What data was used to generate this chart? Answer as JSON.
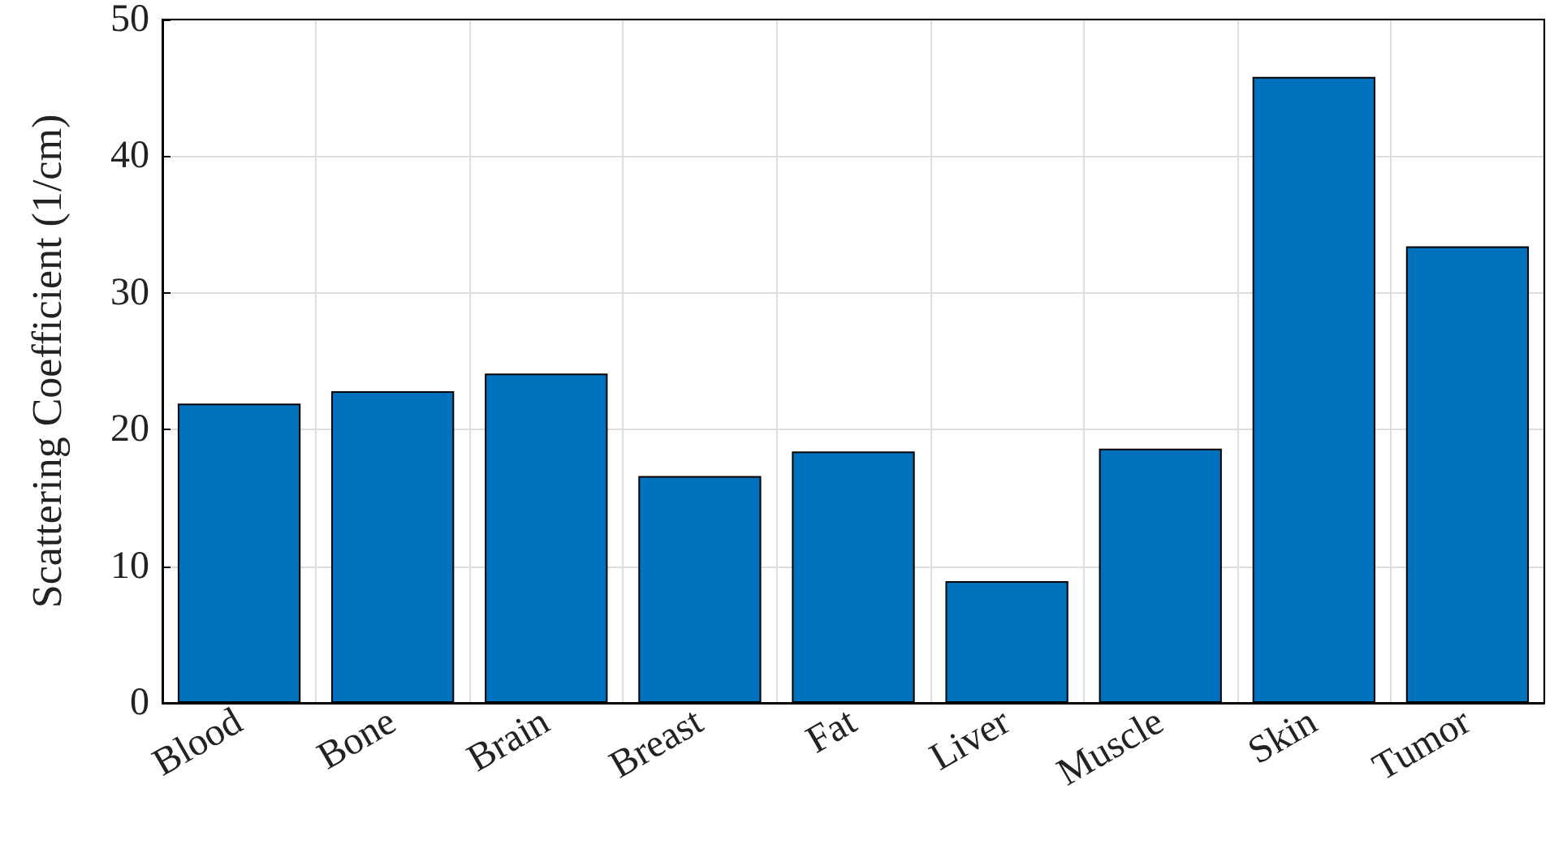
{
  "chart_data": {
    "type": "bar",
    "ylabel": "Scattering Coefficient (1/cm)",
    "categories": [
      "Blood",
      "Bone",
      "Brain",
      "Breast",
      "Fat",
      "Liver",
      "Muscle",
      "Skin",
      "Tumor"
    ],
    "values": [
      21.9,
      22.8,
      24.1,
      16.6,
      18.4,
      8.9,
      18.6,
      45.8,
      33.4
    ],
    "color": "#0072bd",
    "ylim": [
      0,
      50
    ],
    "yticks": [
      0,
      10,
      20,
      30,
      40,
      50
    ],
    "grid": true
  }
}
